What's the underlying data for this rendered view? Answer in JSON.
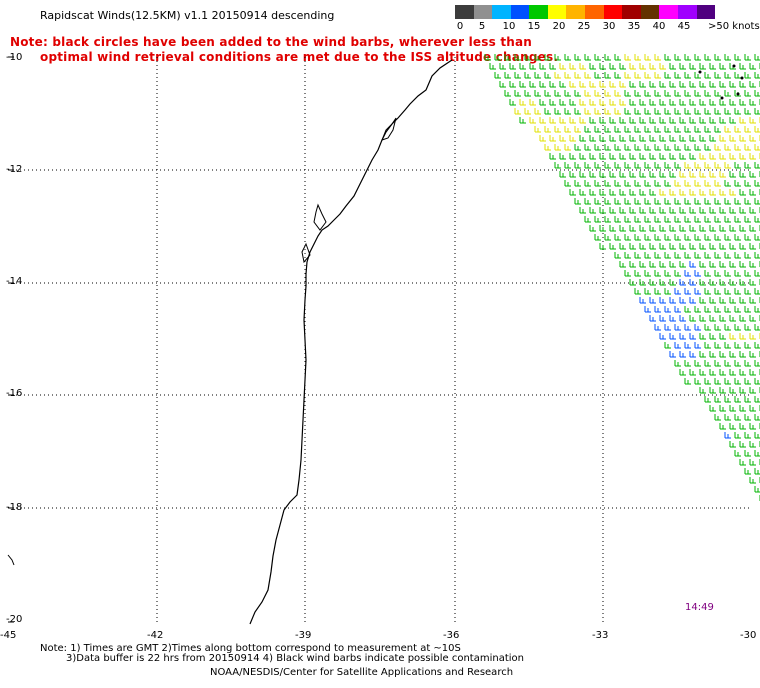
{
  "header": {
    "title": "Rapidscat Winds(12.5KM) v1.1 20150914 descending"
  },
  "notes": {
    "line1": "Note: black circles have been added to the wind barbs, wherever less than",
    "line2": "optimal wind retrieval conditions are met due to the ISS altitude changes."
  },
  "colorbar": {
    "colors": [
      "#3c3c3c",
      "#909090",
      "#00b4ff",
      "#0050ff",
      "#00c800",
      "#ffff00",
      "#ffb400",
      "#ff6400",
      "#ff0000",
      "#a00000",
      "#643200",
      "#ff00ff",
      "#a000ff",
      "#500080"
    ],
    "labels": [
      "0",
      "5",
      "10",
      "15",
      "20",
      "25",
      "30",
      "35",
      "40",
      "45",
      ">50 knots"
    ]
  },
  "axes": {
    "lat_labels": [
      "-10",
      "-12",
      "-14",
      "-16",
      "-18",
      "-20"
    ],
    "lon_labels": [
      "-45",
      "-42",
      "-39",
      "-36",
      "-33",
      "-30"
    ]
  },
  "time_label": "14:49",
  "footer": {
    "line1": "Note: 1) Times are GMT 2)Times along bottom correspond to measurement at ~10S",
    "line2": "3)Data buffer is 22 hrs from 20150914 4) Black wind barbs indicate possible contamination",
    "line3": "NOAA/NESDIS/Center for Satellite Applications and Research"
  }
}
